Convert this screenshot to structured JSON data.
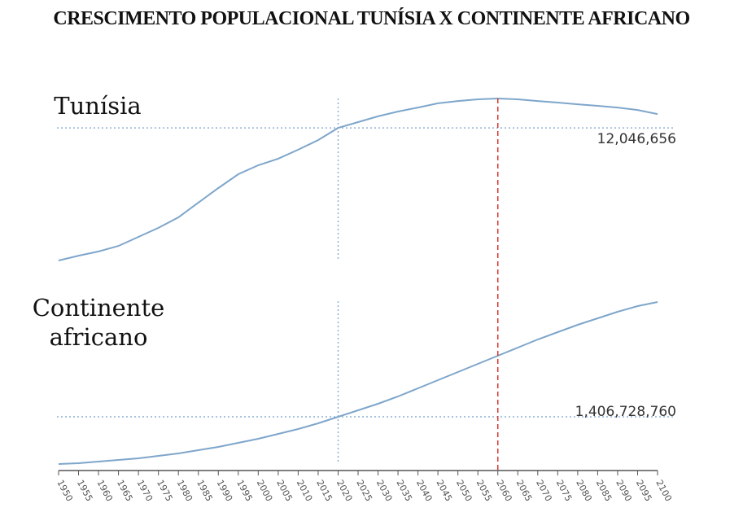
{
  "title": "CRESCIMENTO POPULACIONAL TUNÍSIA X CONTINENTE AFRICANO",
  "chart_data": [
    {
      "type": "line",
      "title": "Tunísia",
      "color": "#7ea6cb",
      "x": [
        1950,
        1955,
        1960,
        1965,
        1970,
        1975,
        1980,
        1985,
        1990,
        1995,
        2000,
        2005,
        2010,
        2015,
        2020,
        2025,
        2030,
        2035,
        2040,
        2045,
        2050,
        2055,
        2060,
        2065,
        2070,
        2075,
        2080,
        2085,
        2090,
        2095,
        2100
      ],
      "values": [
        3500000,
        3810000,
        4080000,
        4440000,
        5020000,
        5600000,
        6280000,
        7230000,
        8170000,
        9060000,
        9640000,
        10060000,
        10640000,
        11260000,
        12046656,
        12420000,
        12790000,
        13100000,
        13360000,
        13630000,
        13780000,
        13890000,
        13940000,
        13890000,
        13780000,
        13680000,
        13570000,
        13470000,
        13360000,
        13200000,
        12940000
      ],
      "ylim": [
        3000000,
        15000000
      ],
      "annotation": {
        "x": 2020,
        "value": 12046656,
        "label": "12,046,656"
      },
      "reference_x": 2060
    },
    {
      "type": "line",
      "title": "Continente africano",
      "color": "#7ea6cb",
      "x": [
        1950,
        1955,
        1960,
        1965,
        1970,
        1975,
        1980,
        1985,
        1990,
        1995,
        2000,
        2005,
        2010,
        2015,
        2020,
        2025,
        2030,
        2035,
        2040,
        2045,
        2050,
        2055,
        2060,
        2065,
        2070,
        2075,
        2080,
        2085,
        2090,
        2095,
        2100
      ],
      "values": [
        228000000,
        248000000,
        289000000,
        330000000,
        370000000,
        431000000,
        492000000,
        574000000,
        655000000,
        756000000,
        858000000,
        980000000,
        1102000000,
        1244000000,
        1406728760,
        1569000000,
        1732000000,
        1915000000,
        2118000000,
        2321000000,
        2525000000,
        2728000000,
        2931000000,
        3135000000,
        3338000000,
        3521000000,
        3704000000,
        3866000000,
        4029000000,
        4171000000,
        4273000000
      ],
      "ylim": [
        0,
        4500000000
      ],
      "annotation": {
        "x": 2020,
        "value": 1406728760,
        "label": "1,406,728,760"
      },
      "reference_x": 2060,
      "xlim": [
        1950,
        2100
      ],
      "xticks": [
        1950,
        1955,
        1960,
        1965,
        1970,
        1975,
        1980,
        1985,
        1990,
        1995,
        2000,
        2005,
        2010,
        2015,
        2020,
        2025,
        2030,
        2035,
        2040,
        2045,
        2050,
        2055,
        2060,
        2065,
        2070,
        2075,
        2080,
        2085,
        2090,
        2095,
        2100
      ]
    }
  ]
}
